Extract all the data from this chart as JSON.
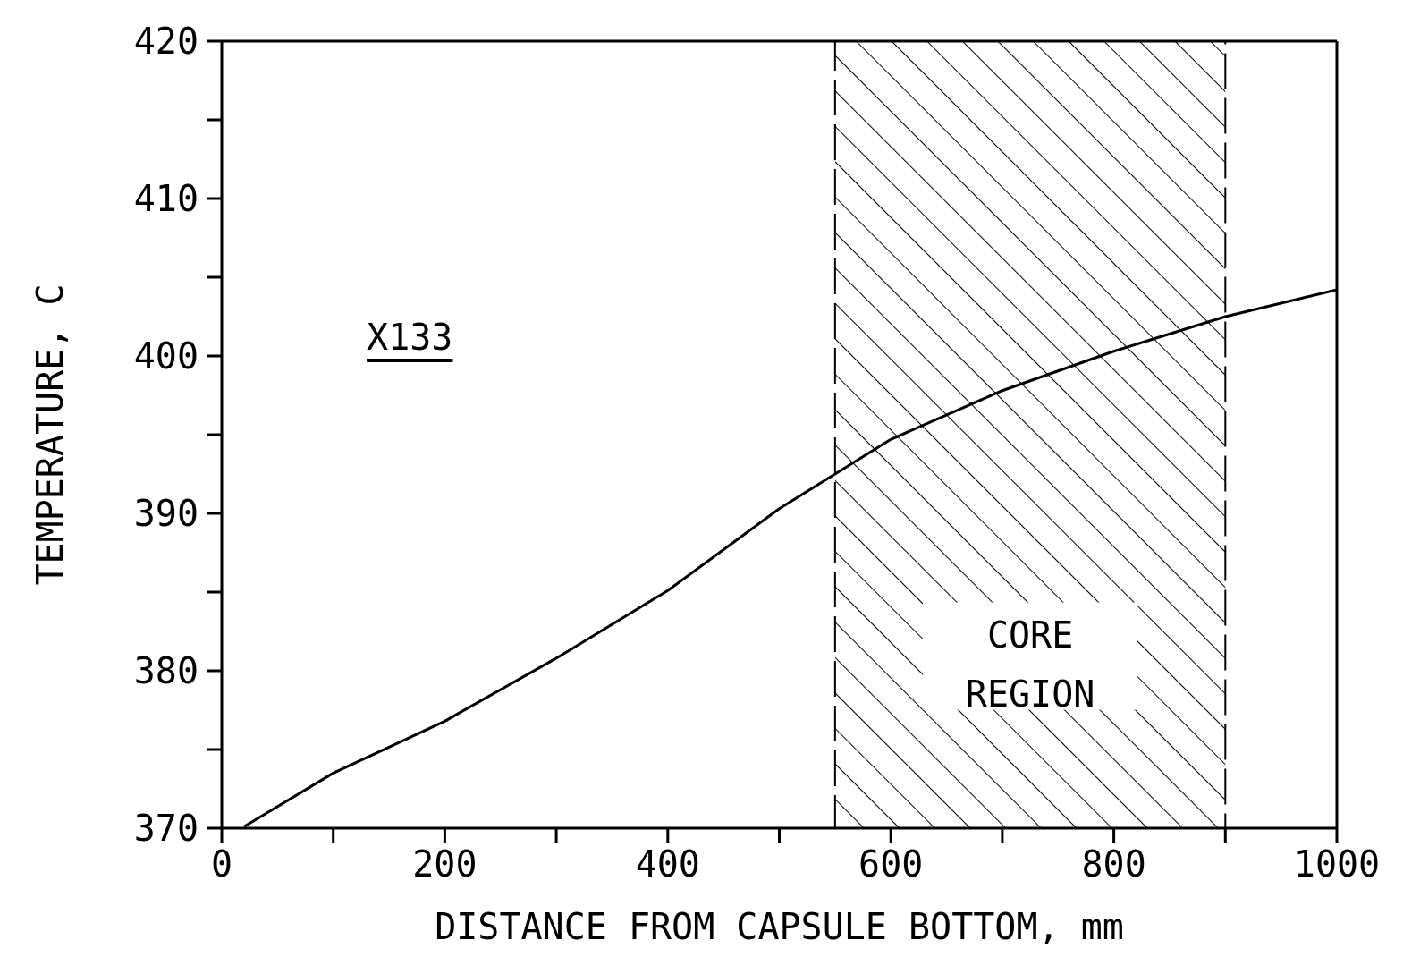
{
  "chart_data": {
    "type": "line",
    "xlabel": "DISTANCE FROM CAPSULE BOTTOM, mm",
    "ylabel": "TEMPERATURE, C",
    "annotations": [
      "X133"
    ],
    "x": [
      20,
      100,
      200,
      300,
      400,
      500,
      550,
      600,
      700,
      800,
      900,
      1000
    ],
    "series": [
      {
        "color": "#000000",
        "values": [
          370.1,
          373.5,
          376.8,
          380.8,
          385.1,
          390.3,
          392.5,
          394.7,
          397.8,
          400.3,
          402.5,
          404.2
        ]
      }
    ],
    "xlim": [
      0,
      1000
    ],
    "xticks": [
      0,
      {
        "value": 100,
        "label": null
      },
      200,
      {
        "value": 300,
        "label": null
      },
      400,
      {
        "value": 500,
        "label": null
      },
      600,
      {
        "value": 700,
        "label": null
      },
      800,
      {
        "value": 900,
        "label": null
      },
      1000
    ],
    "ylim": [
      370,
      420
    ],
    "yticks": [
      370,
      {
        "value": 375,
        "label": null
      },
      380,
      {
        "value": 385,
        "label": null
      },
      390,
      {
        "value": 395,
        "label": null
      },
      400,
      {
        "value": 405,
        "label": null
      },
      410,
      {
        "value": 415,
        "label": null
      },
      420
    ],
    "bands": [
      {
        "axis": "x",
        "from": 550,
        "to": 900,
        "label": "CORE REGION",
        "color": "#000000"
      }
    ],
    "marker": "none",
    "line_style": "solid"
  }
}
